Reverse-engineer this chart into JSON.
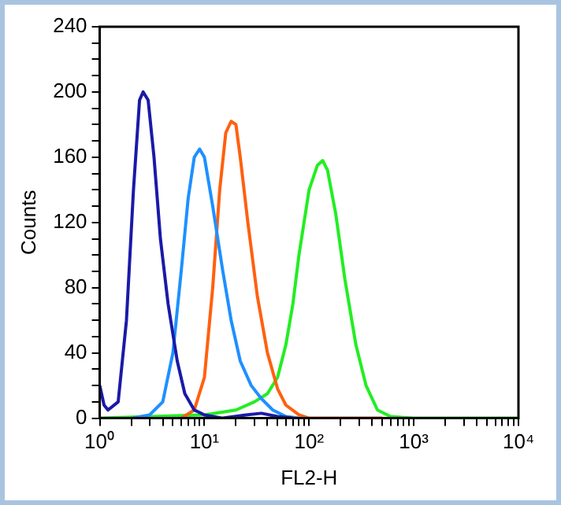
{
  "chart_data": {
    "type": "line",
    "xlabel": "FL2-H",
    "ylabel": "Counts",
    "log": "x",
    "grid": false,
    "legend": false,
    "marker": "none",
    "line_style": "solid",
    "xlim": [
      1,
      10000
    ],
    "ylim": [
      0,
      240
    ],
    "xticks": [
      {
        "value": 1,
        "label": "10⁰"
      },
      {
        "value": 2,
        "label": null
      },
      {
        "value": 3,
        "label": null
      },
      {
        "value": 4,
        "label": null
      },
      {
        "value": 5,
        "label": null
      },
      {
        "value": 6,
        "label": null
      },
      {
        "value": 7,
        "label": null
      },
      {
        "value": 8,
        "label": null
      },
      {
        "value": 9,
        "label": null
      },
      {
        "value": 10,
        "label": "10¹"
      },
      {
        "value": 20,
        "label": null
      },
      {
        "value": 30,
        "label": null
      },
      {
        "value": 40,
        "label": null
      },
      {
        "value": 50,
        "label": null
      },
      {
        "value": 60,
        "label": null
      },
      {
        "value": 70,
        "label": null
      },
      {
        "value": 80,
        "label": null
      },
      {
        "value": 90,
        "label": null
      },
      {
        "value": 100,
        "label": "10²"
      },
      {
        "value": 200,
        "label": null
      },
      {
        "value": 300,
        "label": null
      },
      {
        "value": 400,
        "label": null
      },
      {
        "value": 500,
        "label": null
      },
      {
        "value": 600,
        "label": null
      },
      {
        "value": 700,
        "label": null
      },
      {
        "value": 800,
        "label": null
      },
      {
        "value": 900,
        "label": null
      },
      {
        "value": 1000,
        "label": "10³"
      },
      {
        "value": 2000,
        "label": null
      },
      {
        "value": 3000,
        "label": null
      },
      {
        "value": 4000,
        "label": null
      },
      {
        "value": 5000,
        "label": null
      },
      {
        "value": 6000,
        "label": null
      },
      {
        "value": 7000,
        "label": null
      },
      {
        "value": 8000,
        "label": null
      },
      {
        "value": 9000,
        "label": null
      },
      {
        "value": 10000,
        "label": "10⁴"
      }
    ],
    "yticks": [
      0,
      {
        "value": 10,
        "label": null
      },
      {
        "value": 20,
        "label": null
      },
      {
        "value": 30,
        "label": null
      },
      40,
      {
        "value": 50,
        "label": null
      },
      {
        "value": 60,
        "label": null
      },
      {
        "value": 70,
        "label": null
      },
      80,
      {
        "value": 90,
        "label": null
      },
      {
        "value": 100,
        "label": null
      },
      {
        "value": 110,
        "label": null
      },
      120,
      {
        "value": 130,
        "label": null
      },
      {
        "value": 140,
        "label": null
      },
      {
        "value": 150,
        "label": null
      },
      160,
      {
        "value": 170,
        "label": null
      },
      {
        "value": 180,
        "label": null
      },
      {
        "value": 190,
        "label": null
      },
      200,
      {
        "value": 210,
        "label": null
      },
      {
        "value": 220,
        "label": null
      },
      {
        "value": 230,
        "label": null
      },
      240
    ],
    "series": [
      {
        "color": "#1a1aa8",
        "x": [
          1,
          1.1,
          1.2,
          1.5,
          1.8,
          2.1,
          2.4,
          2.6,
          2.9,
          3.3,
          3.8,
          4.5,
          5.5,
          6.5,
          8,
          10,
          15,
          25,
          35,
          50,
          70
        ],
        "values": [
          20,
          8,
          5,
          10,
          60,
          140,
          195,
          200,
          195,
          160,
          110,
          70,
          35,
          15,
          5,
          2,
          0,
          2,
          3,
          1,
          0
        ]
      },
      {
        "color": "#1e90ff",
        "x": [
          2,
          3,
          4,
          5,
          6,
          7,
          8,
          9,
          10,
          12,
          15,
          18,
          22,
          28,
          35,
          45,
          60,
          80
        ],
        "values": [
          0,
          2,
          10,
          40,
          90,
          135,
          160,
          165,
          160,
          130,
          90,
          60,
          35,
          20,
          12,
          5,
          1,
          0
        ]
      },
      {
        "color": "#ff6010",
        "x": [
          6,
          8,
          10,
          12,
          14,
          16,
          18,
          20,
          22,
          26,
          32,
          40,
          50,
          60,
          80,
          100,
          500
        ],
        "values": [
          0,
          5,
          25,
          80,
          140,
          175,
          182,
          180,
          160,
          120,
          75,
          40,
          18,
          8,
          2,
          0,
          0
        ]
      },
      {
        "color": "#22ee22",
        "x": [
          1,
          10,
          20,
          30,
          40,
          50,
          60,
          70,
          80,
          100,
          120,
          135,
          150,
          180,
          220,
          280,
          350,
          450,
          600,
          1000,
          10000
        ],
        "values": [
          0,
          2,
          5,
          10,
          15,
          25,
          45,
          70,
          100,
          140,
          155,
          158,
          152,
          125,
          85,
          45,
          20,
          5,
          1,
          0,
          0
        ]
      }
    ]
  }
}
